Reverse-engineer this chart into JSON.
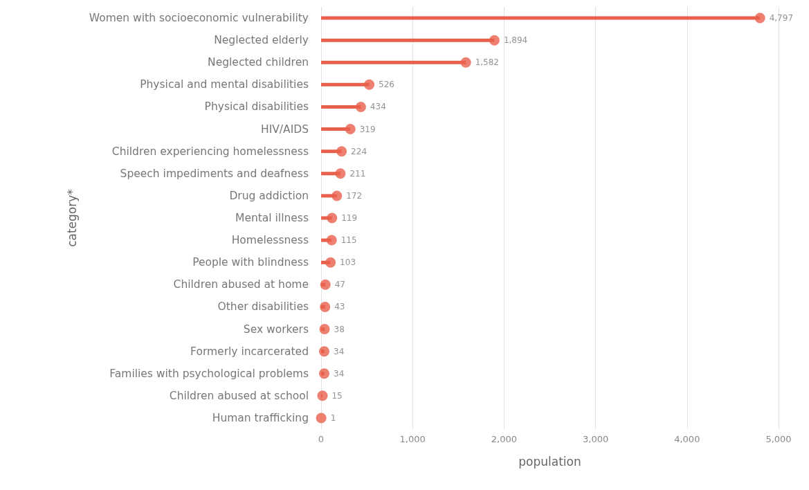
{
  "chart_data": {
    "type": "lollipop",
    "orientation": "horizontal",
    "xlabel": "population",
    "ylabel": "category*",
    "categories": [
      "Women with socioeconomic vulnerability",
      "Neglected elderly",
      "Neglected children",
      "Physical and mental disabilities",
      "Physical disabilities",
      "HIV/AIDS",
      "Children experiencing homelessness",
      "Speech impediments and deafness",
      "Drug addiction",
      "Mental illness",
      "Homelessness",
      "People with blindness",
      "Children abused at home",
      "Other disabilities",
      "Sex workers",
      "Formerly incarcerated",
      "Families with psychological problems",
      "Children abused at school",
      "Human trafficking"
    ],
    "values": [
      4797,
      1894,
      1582,
      526,
      434,
      319,
      224,
      211,
      172,
      119,
      115,
      103,
      47,
      43,
      38,
      34,
      34,
      15,
      1
    ],
    "value_labels": [
      "4,797",
      "1,894",
      "1,582",
      "526",
      "434",
      "319",
      "224",
      "211",
      "172",
      "119",
      "115",
      "103",
      "47",
      "43",
      "38",
      "34",
      "34",
      "15",
      "1"
    ],
    "color": "#e8604c",
    "xlim": [
      0,
      5000
    ],
    "xticks": [
      0,
      {
        "value": 1000,
        "label": "1,000"
      },
      {
        "value": 2000,
        "label": "2,000"
      },
      {
        "value": 3000,
        "label": "3,000"
      },
      {
        "value": 4000,
        "label": "4,000"
      },
      {
        "value": 5000,
        "label": "5,000"
      }
    ],
    "grid": "x",
    "marker": "circle"
  }
}
